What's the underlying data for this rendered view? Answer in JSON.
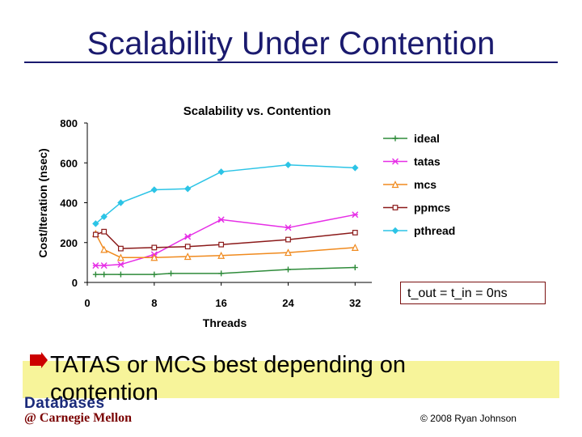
{
  "slide": {
    "title": "Scalability Under Contention",
    "note": "t_out = t_in = 0ns",
    "bullet": "TATAS or MCS best depending on contention",
    "logo_line1": "Databases",
    "logo_line2": "@ Carnegie Mellon",
    "copyright": "© 2008 Ryan Johnson"
  },
  "colors": {
    "title": "#1a1a6e",
    "highlight": "#f7f49a",
    "bullet": "#cc0000"
  },
  "chart_data": {
    "type": "line",
    "title": "Scalability vs. Contention",
    "xlabel": "Threads",
    "ylabel": "Cost/Iteration (nsec)",
    "xlim": [
      0,
      34
    ],
    "ylim": [
      0,
      800
    ],
    "xticks": [
      0,
      8,
      16,
      24,
      32
    ],
    "yticks": [
      0,
      200,
      400,
      600,
      800
    ],
    "grid": false,
    "legend_position": "right",
    "series": [
      {
        "name": "ideal",
        "color": "#2e8b3a",
        "marker": "plus",
        "x": [
          1,
          2,
          4,
          8,
          10,
          16,
          24,
          32
        ],
        "y": [
          40,
          40,
          40,
          40,
          45,
          45,
          65,
          75
        ]
      },
      {
        "name": "tatas",
        "color": "#e62ee6",
        "marker": "star",
        "x": [
          1,
          2,
          4,
          8,
          12,
          16,
          24,
          32
        ],
        "y": [
          85,
          85,
          90,
          140,
          230,
          315,
          275,
          340
        ]
      },
      {
        "name": "mcs",
        "color": "#f08a1e",
        "marker": "triangle",
        "x": [
          1,
          2,
          4,
          8,
          12,
          16,
          24,
          32
        ],
        "y": [
          245,
          165,
          125,
          125,
          130,
          135,
          150,
          175
        ]
      },
      {
        "name": "ppmcs",
        "color": "#8b1a1a",
        "marker": "square",
        "x": [
          1,
          2,
          4,
          8,
          12,
          16,
          24,
          32
        ],
        "y": [
          240,
          255,
          170,
          175,
          180,
          190,
          215,
          250
        ]
      },
      {
        "name": "pthread",
        "color": "#2cc4e6",
        "marker": "diamond",
        "x": [
          1,
          2,
          4,
          8,
          12,
          16,
          24,
          32
        ],
        "y": [
          295,
          330,
          400,
          465,
          470,
          555,
          590,
          575
        ]
      }
    ]
  }
}
